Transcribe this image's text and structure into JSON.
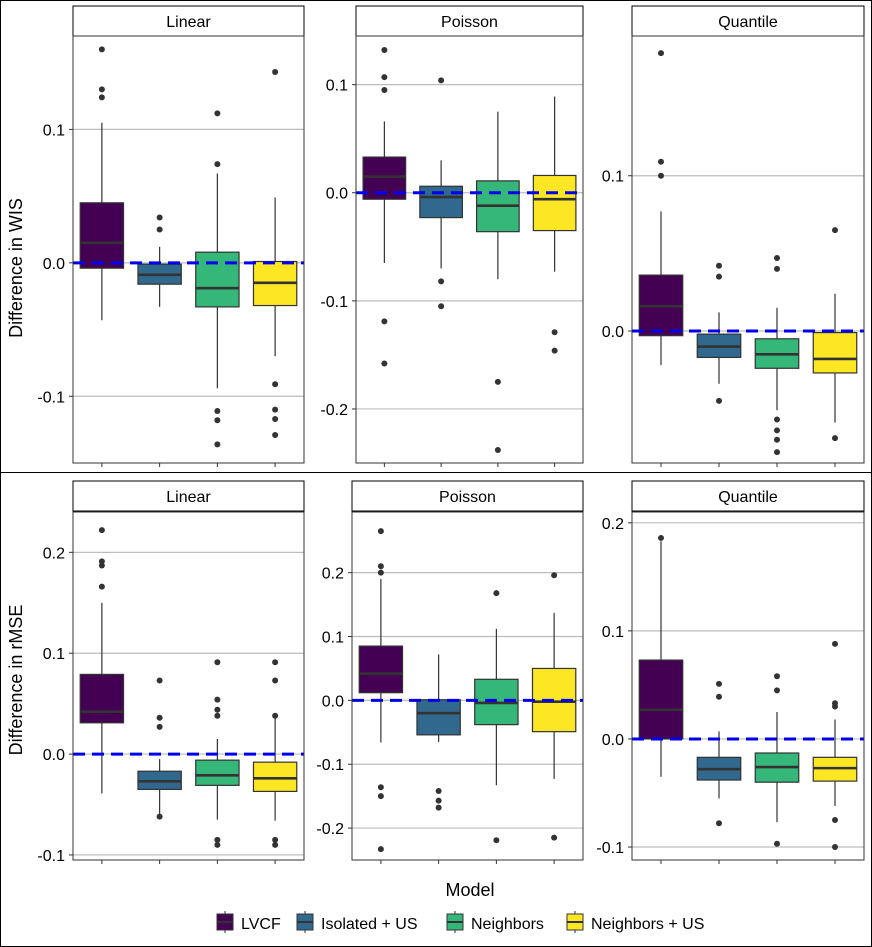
{
  "legend": {
    "title": "Model",
    "items": [
      {
        "label": "LVCF",
        "color": "#440154"
      },
      {
        "label": "Isolated + US",
        "color": "#31688E"
      },
      {
        "label": "Neighbors",
        "color": "#35B779"
      },
      {
        "label": "Neighbors + US",
        "color": "#FDE725"
      }
    ]
  },
  "chart_data": [
    {
      "type": "boxplot",
      "title": "Linear",
      "ylabel": "Difference in WIS",
      "xlabel": "",
      "ylim": [
        -0.15,
        0.17
      ],
      "yticks": [
        -0.1,
        0.0,
        0.1
      ],
      "ytick_labels": [
        "-0.1",
        "0.0",
        "0.1"
      ],
      "reference_line": 0,
      "grid": true,
      "categories": [
        "LVCF",
        "Isolated + US",
        "Neighbors",
        "Neighbors + US"
      ],
      "boxes": [
        {
          "whisker_low": -0.043,
          "q1": -0.004,
          "median": 0.015,
          "q3": 0.045,
          "whisker_high": 0.105,
          "outliers": [
            0.16,
            0.13,
            0.124
          ]
        },
        {
          "whisker_low": -0.033,
          "q1": -0.016,
          "median": -0.009,
          "q3": -0.001,
          "whisker_high": 0.012,
          "outliers": [
            0.034,
            0.025
          ]
        },
        {
          "whisker_low": -0.094,
          "q1": -0.033,
          "median": -0.019,
          "q3": 0.008,
          "whisker_high": 0.067,
          "outliers": [
            0.112,
            0.074,
            -0.111,
            -0.118,
            -0.136
          ]
        },
        {
          "whisker_low": -0.07,
          "q1": -0.032,
          "median": -0.015,
          "q3": 0.001,
          "whisker_high": 0.049,
          "outliers": [
            0.143,
            -0.091,
            -0.11,
            -0.117,
            -0.129
          ]
        }
      ]
    },
    {
      "type": "boxplot",
      "title": "Poisson",
      "ylabel": "",
      "xlabel": "",
      "ylim": [
        -0.25,
        0.145
      ],
      "yticks": [
        -0.2,
        -0.1,
        0.0,
        0.1
      ],
      "ytick_labels": [
        "-0.2",
        "-0.1",
        "0.0",
        "0.1"
      ],
      "reference_line": 0,
      "grid": true,
      "categories": [
        "LVCF",
        "Isolated + US",
        "Neighbors",
        "Neighbors + US"
      ],
      "boxes": [
        {
          "whisker_low": -0.065,
          "q1": -0.006,
          "median": 0.015,
          "q3": 0.033,
          "whisker_high": 0.066,
          "outliers": [
            0.132,
            0.107,
            0.095,
            -0.119,
            -0.158
          ]
        },
        {
          "whisker_low": -0.07,
          "q1": -0.023,
          "median": -0.004,
          "q3": 0.006,
          "whisker_high": 0.03,
          "outliers": [
            0.104,
            -0.082,
            -0.105
          ]
        },
        {
          "whisker_low": -0.08,
          "q1": -0.036,
          "median": -0.012,
          "q3": 0.011,
          "whisker_high": 0.075,
          "outliers": [
            -0.175,
            -0.238
          ]
        },
        {
          "whisker_low": -0.073,
          "q1": -0.035,
          "median": -0.006,
          "q3": 0.016,
          "whisker_high": 0.089,
          "outliers": [
            -0.129,
            -0.146
          ]
        }
      ]
    },
    {
      "type": "boxplot",
      "title": "Quantile",
      "ylabel": "",
      "xlabel": "",
      "ylim": [
        -0.085,
        0.19
      ],
      "yticks": [
        0.0,
        0.1
      ],
      "ytick_labels": [
        "0.0",
        "0.1"
      ],
      "reference_line": 0,
      "grid": true,
      "categories": [
        "LVCF",
        "Isolated + US",
        "Neighbors",
        "Neighbors + US"
      ],
      "boxes": [
        {
          "whisker_low": -0.022,
          "q1": -0.003,
          "median": 0.016,
          "q3": 0.036,
          "whisker_high": 0.077,
          "outliers": [
            0.179,
            0.109,
            0.1
          ]
        },
        {
          "whisker_low": -0.034,
          "q1": -0.017,
          "median": -0.01,
          "q3": -0.002,
          "whisker_high": 0.012,
          "outliers": [
            0.042,
            0.035,
            -0.045
          ]
        },
        {
          "whisker_low": -0.051,
          "q1": -0.024,
          "median": -0.015,
          "q3": -0.005,
          "whisker_high": 0.015,
          "outliers": [
            0.047,
            0.04,
            -0.057,
            -0.064,
            -0.07,
            -0.078
          ]
        },
        {
          "whisker_low": -0.059,
          "q1": -0.027,
          "median": -0.018,
          "q3": -0.001,
          "whisker_high": 0.024,
          "outliers": [
            0.065,
            -0.069
          ]
        }
      ]
    },
    {
      "type": "boxplot",
      "title": "Linear",
      "ylabel": "Difference in rMSE",
      "xlabel": "",
      "ylim": [
        -0.105,
        0.24
      ],
      "yticks": [
        -0.1,
        0.0,
        0.1,
        0.2
      ],
      "ytick_labels": [
        "-0.1",
        "0.0",
        "0.1",
        "0.2"
      ],
      "reference_line": 0,
      "grid": true,
      "categories": [
        "LVCF",
        "Isolated + US",
        "Neighbors",
        "Neighbors + US"
      ],
      "boxes": [
        {
          "whisker_low": -0.039,
          "q1": 0.031,
          "median": 0.042,
          "q3": 0.079,
          "whisker_high": 0.15,
          "outliers": [
            0.222,
            0.191,
            0.187,
            0.166
          ]
        },
        {
          "whisker_low": -0.06,
          "q1": -0.035,
          "median": -0.027,
          "q3": -0.017,
          "whisker_high": -0.005,
          "outliers": [
            0.073,
            0.036,
            0.027,
            -0.062
          ]
        },
        {
          "whisker_low": -0.065,
          "q1": -0.031,
          "median": -0.021,
          "q3": -0.006,
          "whisker_high": 0.015,
          "outliers": [
            0.091,
            0.054,
            0.044,
            0.038,
            -0.085,
            -0.09
          ]
        },
        {
          "whisker_low": -0.066,
          "q1": -0.037,
          "median": -0.024,
          "q3": -0.008,
          "whisker_high": 0.037,
          "outliers": [
            0.091,
            0.073,
            0.038,
            -0.085,
            -0.09
          ]
        }
      ]
    },
    {
      "type": "boxplot",
      "title": "Poisson",
      "ylabel": "",
      "xlabel": "",
      "ylim": [
        -0.25,
        0.295
      ],
      "yticks": [
        -0.2,
        -0.1,
        0.0,
        0.1,
        0.2
      ],
      "ytick_labels": [
        "-0.2",
        "-0.1",
        "0.0",
        "0.1",
        "0.2"
      ],
      "reference_line": 0,
      "grid": true,
      "categories": [
        "LVCF",
        "Isolated + US",
        "Neighbors",
        "Neighbors + US"
      ],
      "boxes": [
        {
          "whisker_low": -0.066,
          "q1": 0.012,
          "median": 0.042,
          "q3": 0.085,
          "whisker_high": 0.19,
          "outliers": [
            0.265,
            0.21,
            0.2,
            -0.136,
            -0.15,
            -0.233
          ]
        },
        {
          "whisker_low": -0.065,
          "q1": -0.054,
          "median": -0.02,
          "q3": 0.001,
          "whisker_high": 0.072,
          "outliers": [
            -0.142,
            -0.157,
            -0.168
          ]
        },
        {
          "whisker_low": -0.133,
          "q1": -0.038,
          "median": -0.004,
          "q3": 0.033,
          "whisker_high": 0.112,
          "outliers": [
            0.168,
            -0.219
          ]
        },
        {
          "whisker_low": -0.123,
          "q1": -0.049,
          "median": -0.002,
          "q3": 0.05,
          "whisker_high": 0.137,
          "outliers": [
            0.196,
            -0.215
          ]
        }
      ]
    },
    {
      "type": "boxplot",
      "title": "Quantile",
      "ylabel": "",
      "xlabel": "",
      "ylim": [
        -0.112,
        0.21
      ],
      "yticks": [
        -0.1,
        0.0,
        0.1,
        0.2
      ],
      "ytick_labels": [
        "-0.1",
        "0.0",
        "0.1",
        "0.2"
      ],
      "reference_line": 0,
      "grid": true,
      "categories": [
        "LVCF",
        "Isolated + US",
        "Neighbors",
        "Neighbors + US"
      ],
      "boxes": [
        {
          "whisker_low": -0.035,
          "q1": 0.0,
          "median": 0.027,
          "q3": 0.073,
          "whisker_high": 0.183,
          "outliers": [
            0.186
          ]
        },
        {
          "whisker_low": -0.055,
          "q1": -0.038,
          "median": -0.028,
          "q3": -0.017,
          "whisker_high": 0.007,
          "outliers": [
            0.051,
            0.039,
            -0.078
          ]
        },
        {
          "whisker_low": -0.077,
          "q1": -0.04,
          "median": -0.026,
          "q3": -0.013,
          "whisker_high": 0.025,
          "outliers": [
            0.058,
            0.045,
            -0.097
          ]
        },
        {
          "whisker_low": -0.062,
          "q1": -0.039,
          "median": -0.027,
          "q3": -0.017,
          "whisker_high": 0.018,
          "outliers": [
            0.088,
            0.033,
            0.03,
            -0.075,
            -0.1
          ]
        }
      ]
    }
  ]
}
